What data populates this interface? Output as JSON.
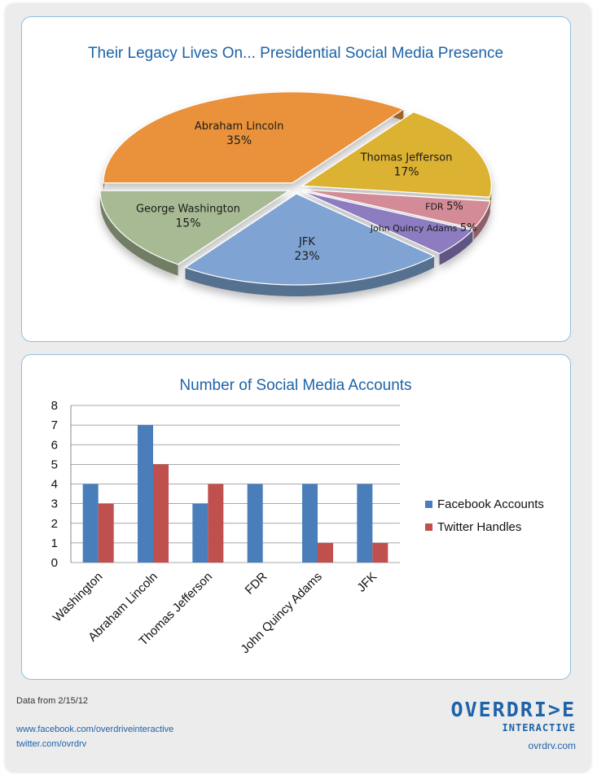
{
  "chart_data": [
    {
      "type": "pie",
      "title": "Their Legacy Lives On... Presidential Social Media Presence",
      "slices": [
        {
          "label": "Abraham Lincoln",
          "value": 35,
          "display": "35%",
          "color": "#e9923a"
        },
        {
          "label": "Thomas Jefferson",
          "value": 17,
          "display": "17%",
          "color": "#dcb233"
        },
        {
          "label": "FDR",
          "value": 5,
          "display": "5%",
          "color": "#d38b97"
        },
        {
          "label": "John Quincy Adams",
          "value": 5,
          "display": "5%",
          "color": "#8d7cc0"
        },
        {
          "label": "JFK",
          "value": 23,
          "display": "23%",
          "color": "#7fa3d3"
        },
        {
          "label": "George Washington",
          "value": 15,
          "display": "15%",
          "color": "#a7ba93"
        }
      ],
      "units": "percent"
    },
    {
      "type": "bar",
      "title": "Number of Social Media Accounts",
      "categories": [
        "Washington",
        "Abraham Lincoln",
        "Thomas Jefferson",
        "FDR",
        "John Quincy Adams",
        "JFK"
      ],
      "series": [
        {
          "name": "Facebook Accounts",
          "values": [
            4,
            7,
            3,
            4,
            4,
            4
          ],
          "color": "#4a7ebb"
        },
        {
          "name": "Twitter Handles",
          "values": [
            3,
            5,
            4,
            0,
            1,
            1
          ],
          "color": "#c0504d"
        }
      ],
      "ylim": [
        0,
        8
      ],
      "yticks": [
        0,
        1,
        2,
        3,
        4,
        5,
        6,
        7,
        8
      ],
      "grid": true,
      "legend": "right"
    }
  ],
  "footer": {
    "date_note": "Data from 2/15/12",
    "facebook_url": "www.facebook.com/overdriveinteractive",
    "twitter_url": "twitter.com/ovrdrv",
    "logo_word": "OVERDRI>E",
    "logo_sub": "INTERACTIVE",
    "site_url": "ovrdrv.com"
  }
}
